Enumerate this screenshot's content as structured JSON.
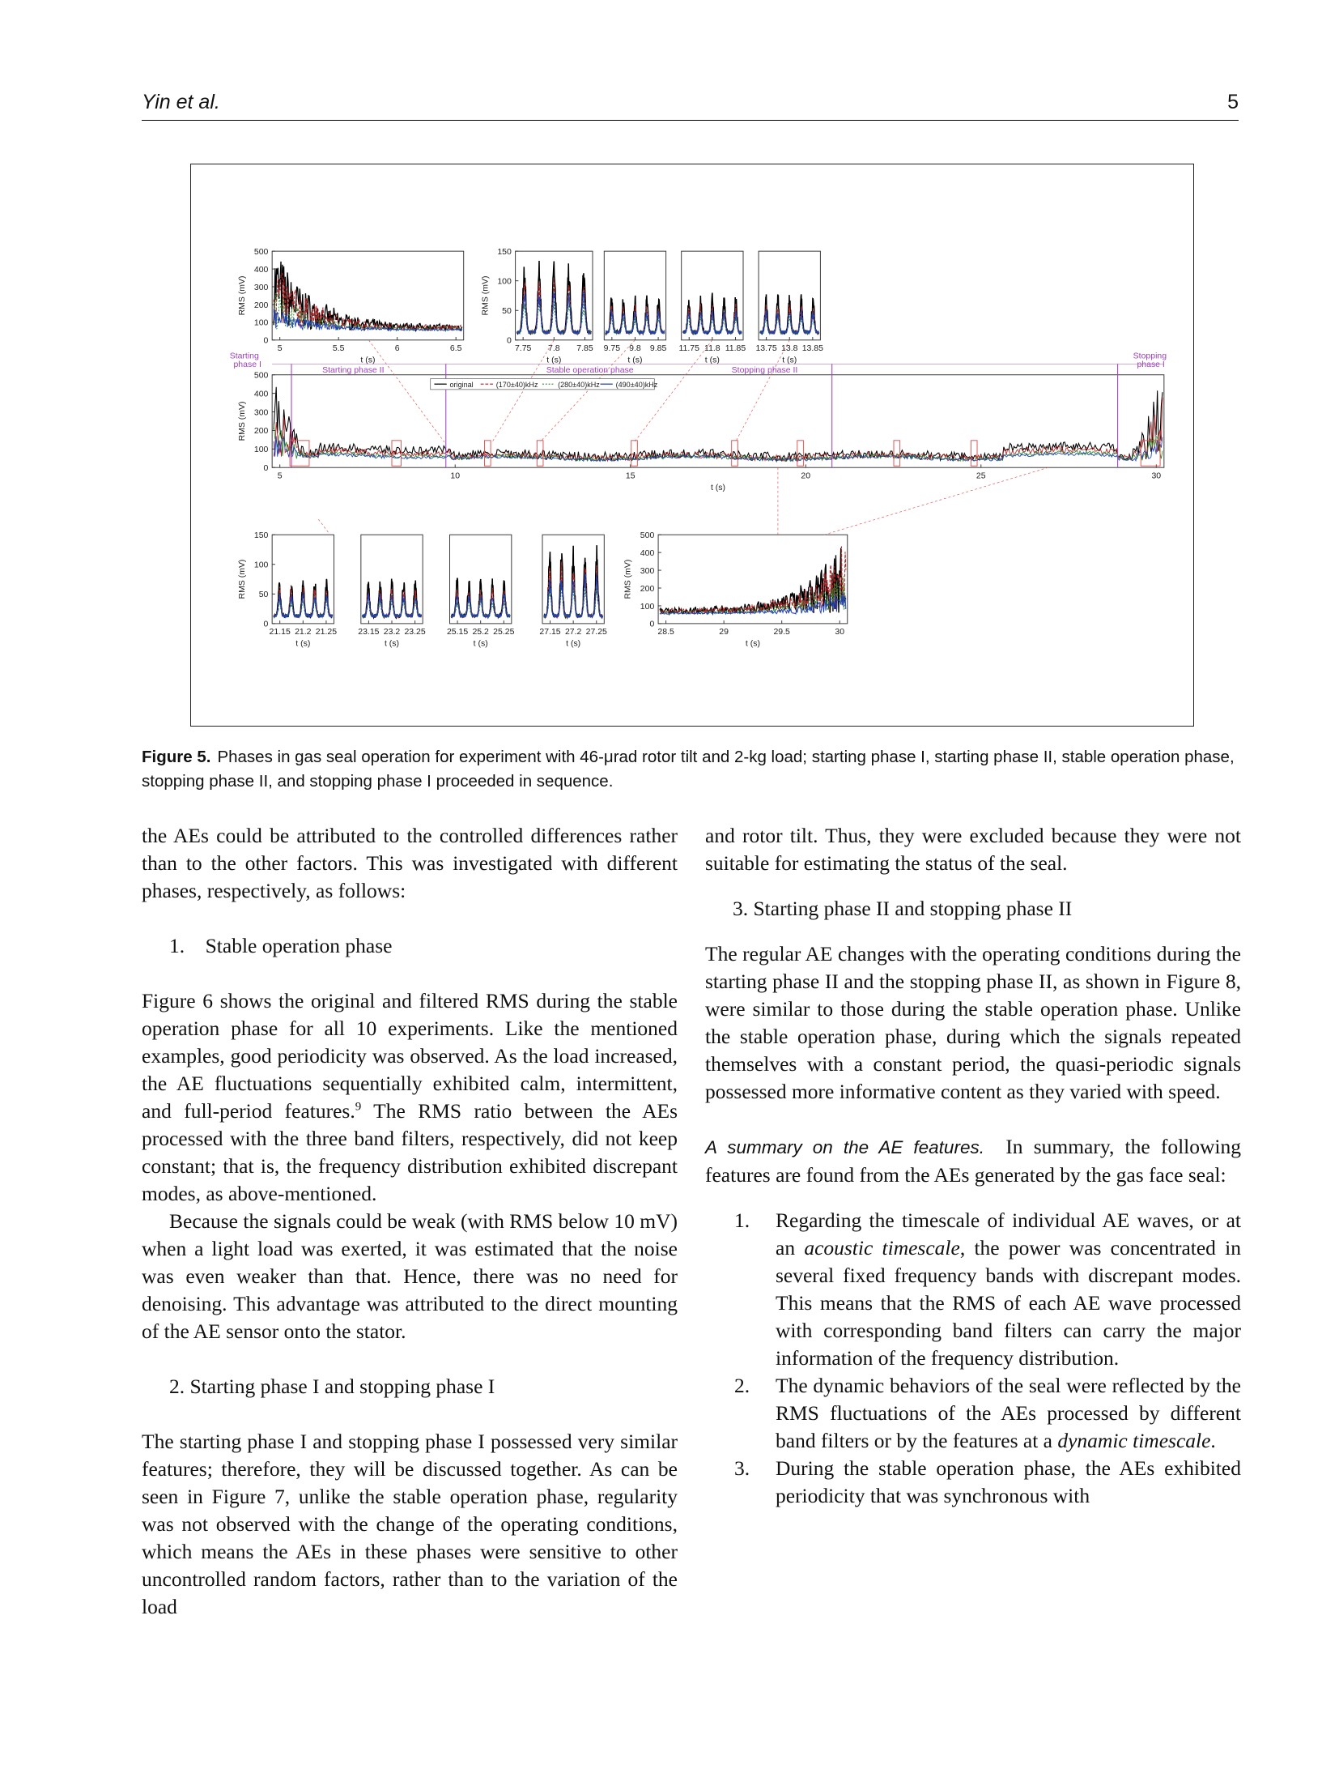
{
  "header": {
    "authors": "Yin et al.",
    "page_number": "5"
  },
  "figure": {
    "label": "Figure 5.",
    "caption": "Phases in gas seal operation for experiment with 46-μrad rotor tilt and 2-kg load; starting phase I, starting phase II, stable operation phase, stopping phase II, and stopping phase I proceeded in sequence.",
    "phase_labels": {
      "starting_1": [
        "Starting",
        "phase I"
      ],
      "starting_2": "Starting phase II",
      "stable": "Stable operation phase",
      "stopping_2": "Stopping phase II",
      "stopping_1": [
        "Stopping",
        "phase I"
      ]
    },
    "legend": [
      "original",
      "(170±40)kHz",
      "(280±40)kHz",
      "(490±40)kHz"
    ],
    "colors": {
      "original": "#000000",
      "b170": "#b22222",
      "b280": "#2e8b2e",
      "b490": "#2040b0",
      "phase": "#a040c0",
      "zoom": "#e05050"
    },
    "main_axis": {
      "xlabel": "t (s)",
      "ylabel": "RMS (mV)",
      "xticks": [
        "5",
        "10",
        "15",
        "20",
        "25",
        "30"
      ],
      "yticks": [
        "0",
        "100",
        "200",
        "300",
        "400",
        "500"
      ]
    },
    "top_panels": [
      {
        "xticks": [
          "5",
          "5.5",
          "6",
          "6.5"
        ],
        "xlabel": "t (s)",
        "ylabel": "RMS (mV)",
        "yticks": [
          "0",
          "100",
          "200",
          "300",
          "400",
          "500"
        ]
      },
      {
        "xticks": [
          "7.75",
          "7.8",
          "7.85"
        ],
        "xlabel": "t (s)",
        "ylabel": "RMS (mV)",
        "yticks": [
          "0",
          "50",
          "100",
          "150"
        ]
      },
      {
        "xticks": [
          "9.75",
          "9.8",
          "9.85"
        ],
        "xlabel": "t (s)"
      },
      {
        "xticks": [
          "11.75",
          "11.8",
          "11.85"
        ],
        "xlabel": "t (s)"
      },
      {
        "xticks": [
          "13.75",
          "13.8",
          "13.85"
        ],
        "xlabel": "t (s)"
      }
    ],
    "bottom_panels": [
      {
        "xticks": [
          "21.15",
          "21.2",
          "21.25"
        ],
        "xlabel": "t (s)",
        "ylabel": "RMS (mV)",
        "yticks": [
          "0",
          "50",
          "100",
          "150"
        ]
      },
      {
        "xticks": [
          "23.15",
          "23.2",
          "23.25"
        ],
        "xlabel": "t (s)"
      },
      {
        "xticks": [
          "25.15",
          "25.2",
          "25.25"
        ],
        "xlabel": "t (s)"
      },
      {
        "xticks": [
          "27.15",
          "27.2",
          "27.25"
        ],
        "xlabel": "t (s)"
      },
      {
        "xticks": [
          "28.5",
          "29",
          "29.5",
          "30"
        ],
        "xlabel": "t (s)",
        "ylabel": "RMS (mV)",
        "yticks": [
          "0",
          "100",
          "200",
          "300",
          "400",
          "500"
        ]
      }
    ]
  },
  "left_column": {
    "p1": "the AEs could be attributed to the controlled differences rather than to the other factors. This was investigated with different phases, respectively, as follows:",
    "sec1_num": "1.",
    "sec1_title": "Stable operation phase",
    "p2a": "Figure 6 shows the original and filtered RMS during the stable operation phase for all 10 experiments. Like the mentioned examples, good periodicity was observed. As the load increased, the AE fluctuations sequentially exhibited calm, intermittent, and full-period features.",
    "p2_ref": "9",
    "p2b": " The RMS ratio between the AEs processed with the three band filters, respectively, did not keep constant; that is, the frequency distribution exhibited discrepant modes, as above-mentioned.",
    "p3": "Because the signals could be weak (with RMS below 10 mV) when a light load was exerted, it was estimated that the noise was even weaker than that. Hence, there was no need for denoising. This advantage was attributed to the direct mounting of the AE sensor onto the stator.",
    "sec2": "2. Starting phase I and stopping phase I",
    "p4": "The starting phase I and stopping phase I possessed very similar features; therefore, they will be discussed together. As can be seen in Figure 7, unlike the stable operation phase, regularity was not observed with the change of the operating conditions, which means the AEs in these phases were sensitive to other uncontrolled random factors, rather than to the variation of the load"
  },
  "right_column": {
    "p1": "and rotor tilt. Thus, they were excluded because they were not suitable for estimating the status of the seal.",
    "sec3": "3. Starting phase II and stopping phase II",
    "p2": "The regular AE changes with the operating conditions during the starting phase II and the stopping phase II, as shown in Figure 8, were similar to those during the stable operation phase. Unlike the stable operation phase, during which the signals repeated themselves with a constant period, the quasi-periodic signals possessed more informative content as they varied with speed.",
    "run_head": "A summary on the AE features.",
    "p3": "In summary, the following features are found from the AEs generated by the gas face seal:",
    "items": [
      {
        "num": "1.",
        "pre": "Regarding the timescale of individual AE waves, or at an ",
        "em": "acoustic timescale",
        "post": ", the power was concentrated in several fixed frequency bands with discrepant modes. This means that the RMS of each AE wave processed with corresponding band filters can carry the major information of the frequency distribution."
      },
      {
        "num": "2.",
        "pre": "The dynamic behaviors of the seal were reflected by the RMS fluctuations of the AEs processed by different band filters or by the features at a ",
        "em": "dynamic timescale",
        "post": "."
      },
      {
        "num": "3.",
        "pre": "During the stable operation phase, the AEs exhibited periodicity that was synchronous with",
        "em": "",
        "post": ""
      }
    ]
  }
}
